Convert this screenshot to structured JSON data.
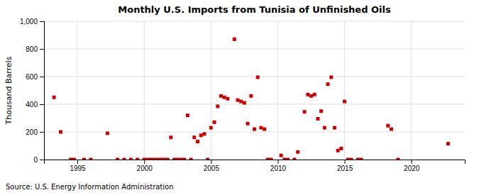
{
  "chart_data": {
    "type": "scatter",
    "title": "Monthly U.S. Imports from Tunisia of Unfinished Oils",
    "ylabel": "Thousand Barrels",
    "annotations": [
      "Source: U.S. Energy Information Administration"
    ],
    "color": "#cc0000",
    "marker": "square",
    "grid": true,
    "xlim": [
      1992.5,
      2024.0
    ],
    "xticks": [
      1995,
      2000,
      2005,
      2010,
      2015,
      2020
    ],
    "ylim": [
      0,
      1000
    ],
    "yticks": [
      0,
      200,
      400,
      600,
      800,
      {
        "value": 1000,
        "label": "1,000"
      }
    ],
    "x": [
      1993.25,
      1993.75,
      1994.5,
      1994.75,
      1995.5,
      1996.0,
      1997.25,
      1998.0,
      1998.5,
      1999.0,
      1999.5,
      2000.0,
      2000.25,
      2000.5,
      2000.75,
      2001.0,
      2001.25,
      2001.5,
      2001.75,
      2002.0,
      2002.25,
      2002.5,
      2002.75,
      2003.0,
      2003.25,
      2003.5,
      2003.75,
      2004.0,
      2004.25,
      2004.5,
      2004.75,
      2005.0,
      2005.25,
      2005.5,
      2005.75,
      2006.0,
      2006.25,
      2006.75,
      2007.0,
      2007.25,
      2007.5,
      2007.75,
      2008.0,
      2008.25,
      2008.5,
      2008.75,
      2009.0,
      2009.25,
      2009.5,
      2010.25,
      2010.5,
      2010.75,
      2011.25,
      2011.5,
      2012.0,
      2012.25,
      2012.5,
      2012.75,
      2013.0,
      2013.25,
      2013.5,
      2013.75,
      2014.0,
      2014.25,
      2014.5,
      2014.75,
      2015.0,
      2015.25,
      2015.5,
      2016.0,
      2016.25,
      2018.25,
      2018.5,
      2019.0,
      2022.75
    ],
    "values": [
      450,
      200,
      0,
      0,
      0,
      0,
      190,
      0,
      0,
      0,
      0,
      0,
      0,
      0,
      0,
      0,
      0,
      0,
      0,
      160,
      0,
      0,
      0,
      0,
      320,
      0,
      160,
      130,
      175,
      185,
      0,
      230,
      270,
      385,
      460,
      450,
      440,
      870,
      430,
      420,
      410,
      260,
      460,
      220,
      595,
      230,
      220,
      0,
      0,
      30,
      0,
      0,
      0,
      55,
      345,
      470,
      460,
      470,
      295,
      350,
      230,
      545,
      595,
      230,
      65,
      80,
      420,
      0,
      0,
      0,
      0,
      245,
      220,
      0,
      115
    ]
  }
}
